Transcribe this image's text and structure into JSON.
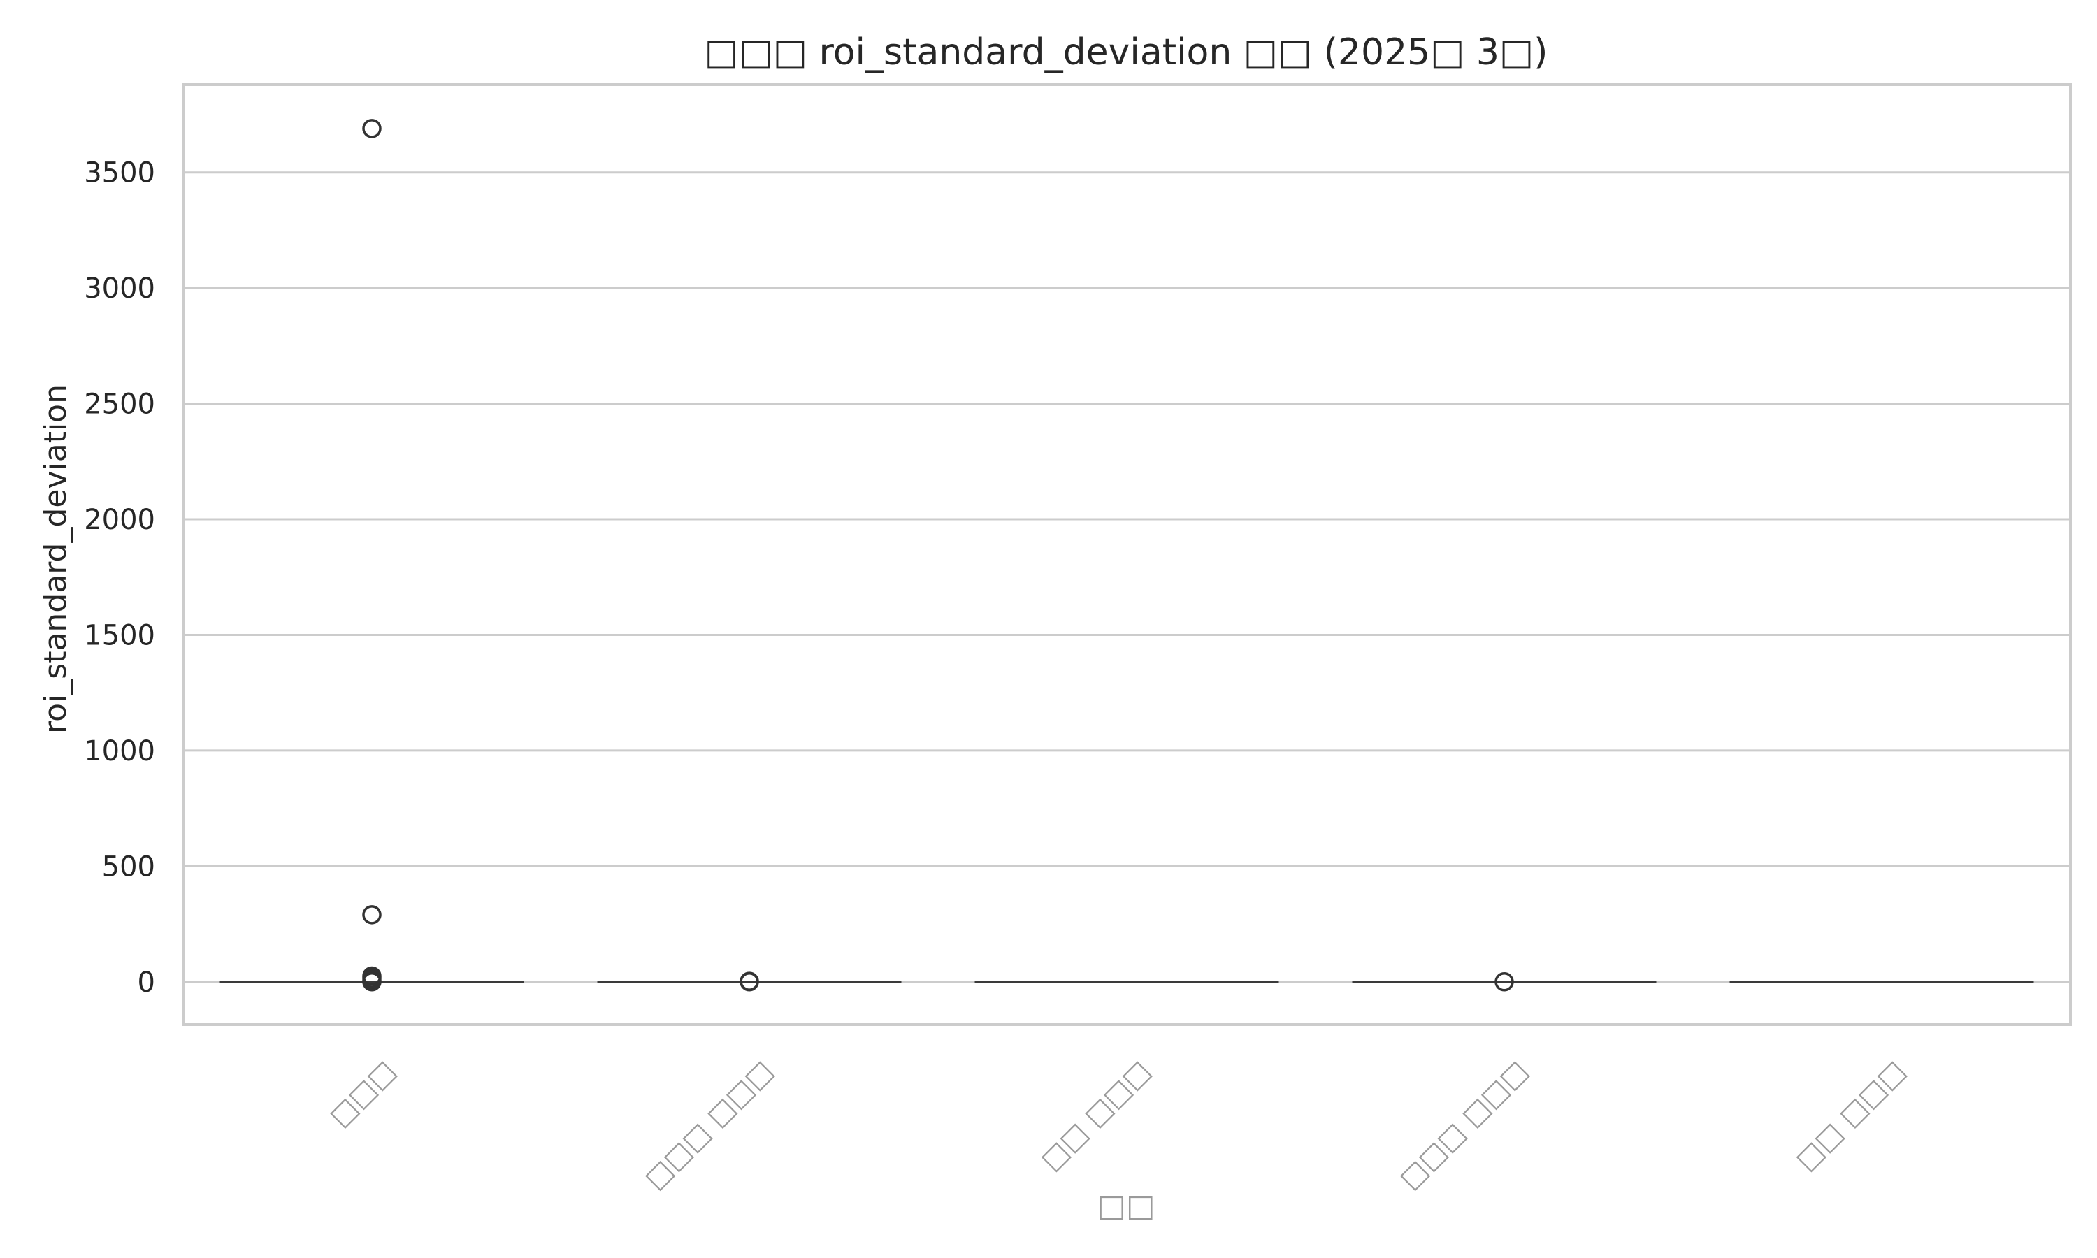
{
  "colors": {
    "grid": "#cccccc",
    "spine": "#cccccc",
    "box_line": "#3a3a3a",
    "flier": "#333333"
  },
  "chart_data": {
    "type": "box",
    "title": "□□□ roi_standard_deviation □□ (2025□ 3□)",
    "xlabel": "□□",
    "ylabel": "roi_standard_deviation",
    "ylim": [
      -185,
      3880
    ],
    "yticks": [
      0,
      500,
      1000,
      1500,
      2000,
      2500,
      3000,
      3500
    ],
    "grid": "horizontal",
    "categories": [
      "□□□",
      "□□□ □□□",
      "□□ □□□",
      "□□□ □□□",
      "□□ □□□"
    ],
    "boxes": [
      {
        "category": "□□□",
        "q1": 0,
        "median": 0,
        "q3": 0,
        "whisker_low": 0,
        "whisker_high": 0,
        "outliers": [
          3690,
          290,
          25,
          15,
          5,
          0
        ]
      },
      {
        "category": "□□□ □□□",
        "q1": 0,
        "median": 0,
        "q3": 0,
        "whisker_low": 0,
        "whisker_high": 0,
        "outliers": [
          2,
          0
        ]
      },
      {
        "category": "□□ □□□",
        "q1": 0,
        "median": 0,
        "q3": 0,
        "whisker_low": 0,
        "whisker_high": 0,
        "outliers": []
      },
      {
        "category": "□□□ □□□",
        "q1": 0,
        "median": 0,
        "q3": 0,
        "whisker_low": 0,
        "whisker_high": 0,
        "outliers": [
          0
        ]
      },
      {
        "category": "□□ □□□",
        "q1": 0,
        "median": 0,
        "q3": 0,
        "whisker_low": 0,
        "whisker_high": 0,
        "outliers": []
      }
    ]
  }
}
